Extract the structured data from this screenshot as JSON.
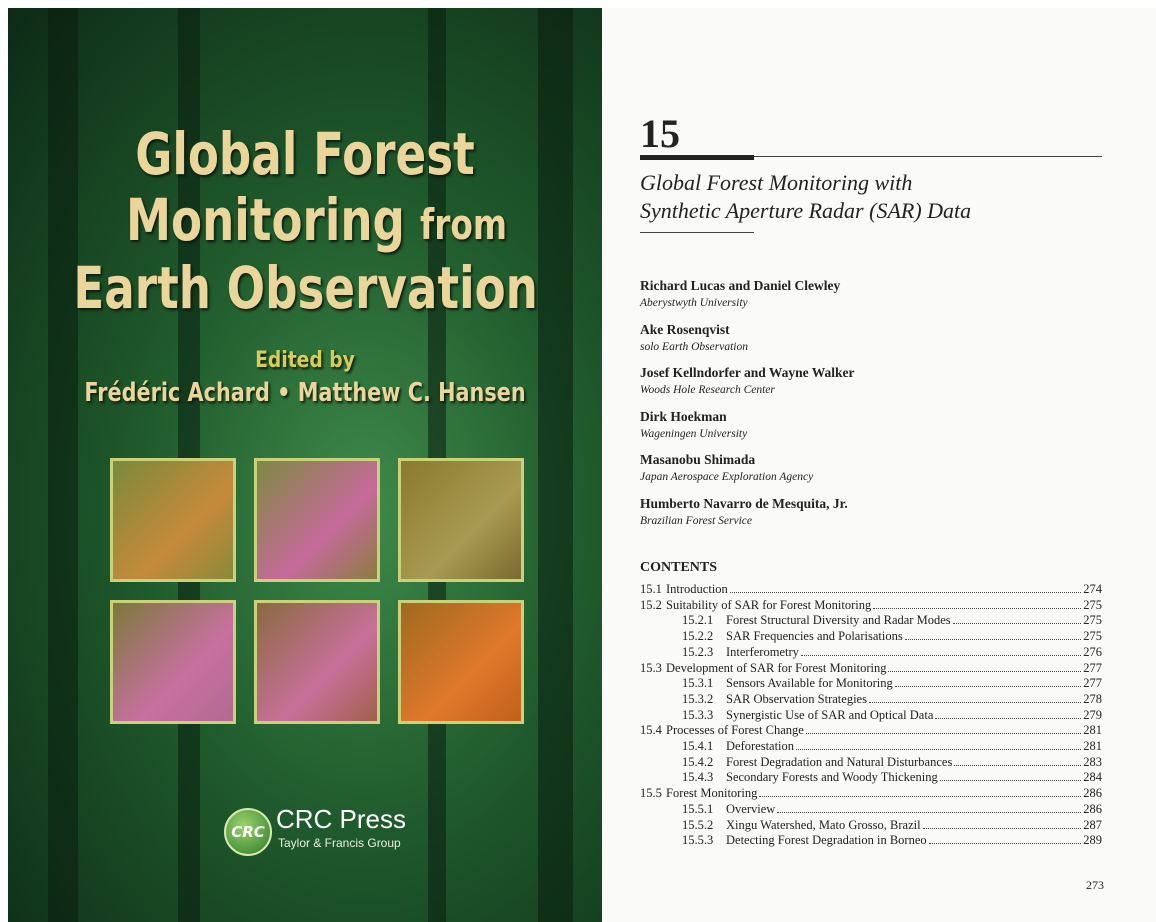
{
  "cover": {
    "title_lines": [
      "Global Forest",
      "Monitoring",
      "from",
      "Earth Observation"
    ],
    "edited_by": "Edited by",
    "editors": "Frédéric Achard • Matthew C. Hansen",
    "publisher_logo": "CRC",
    "publisher": "CRC Press",
    "publisher_group": "Taylor & Francis Group"
  },
  "page": {
    "chapter_number": "15",
    "chapter_title": [
      "Global Forest Monitoring with",
      "Synthetic Aperture Radar (SAR) Data"
    ],
    "authors": [
      {
        "names": "Richard Lucas and Daniel Clewley",
        "affiliation": "Aberystwyth University"
      },
      {
        "names": "Ake Rosenqvist",
        "affiliation": "solo Earth Observation"
      },
      {
        "names": "Josef Kellndorfer and Wayne Walker",
        "affiliation": "Woods Hole Research Center"
      },
      {
        "names": "Dirk Hoekman",
        "affiliation": "Wageningen University"
      },
      {
        "names": "Masanobu Shimada",
        "affiliation": "Japan Aerospace Exploration Agency"
      },
      {
        "names": "Humberto Navarro de Mesquita, Jr.",
        "affiliation": "Brazilian Forest Service"
      }
    ],
    "contents_heading": "CONTENTS",
    "toc": [
      {
        "number": "15.1",
        "title": "Introduction",
        "page": "274"
      },
      {
        "number": "15.2",
        "title": "Suitability of SAR for Forest Monitoring",
        "page": "275"
      },
      {
        "number": "15.2.1",
        "title": "Forest Structural Diversity and Radar Modes",
        "page": "275"
      },
      {
        "number": "15.2.2",
        "title": "SAR Frequencies and Polarisations",
        "page": "275"
      },
      {
        "number": "15.2.3",
        "title": "Interferometry",
        "page": "276"
      },
      {
        "number": "15.3",
        "title": "Development of SAR for Forest Monitoring",
        "page": "277"
      },
      {
        "number": "15.3.1",
        "title": "Sensors Available for Monitoring",
        "page": "277"
      },
      {
        "number": "15.3.2",
        "title": "SAR Observation Strategies",
        "page": "278"
      },
      {
        "number": "15.3.3",
        "title": "Synergistic Use of SAR and Optical Data",
        "page": "279"
      },
      {
        "number": "15.4",
        "title": "Processes of Forest Change",
        "page": "281"
      },
      {
        "number": "15.4.1",
        "title": "Deforestation",
        "page": "281"
      },
      {
        "number": "15.4.2",
        "title": "Forest Degradation and Natural Disturbances",
        "page": "283"
      },
      {
        "number": "15.4.3",
        "title": "Secondary Forests and Woody Thickening",
        "page": "284"
      },
      {
        "number": "15.5",
        "title": "Forest Monitoring",
        "page": "286"
      },
      {
        "number": "15.5.1",
        "title": "Overview",
        "page": "286"
      },
      {
        "number": "15.5.2",
        "title": "Xingu Watershed, Mato Grosso, Brazil",
        "page": "287"
      },
      {
        "number": "15.5.3",
        "title": "Detecting Forest Degradation in Borneo",
        "page": "289"
      }
    ],
    "page_number": "273"
  }
}
